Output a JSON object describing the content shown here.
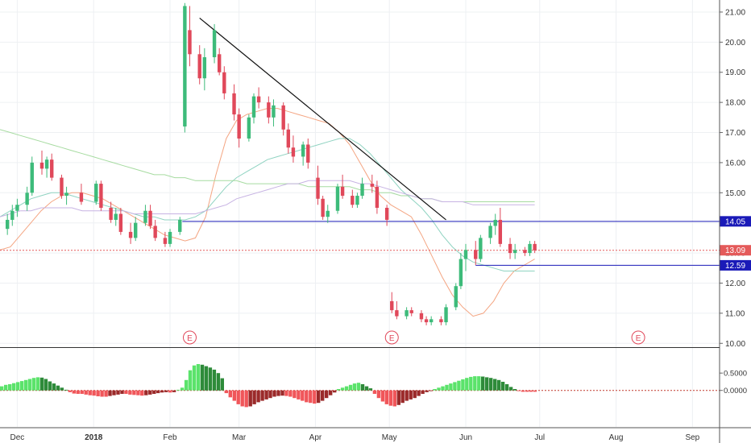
{
  "chart_data": {
    "type": "candlestick",
    "price_axis": {
      "ticks": [
        "21.00",
        "20.00",
        "19.00",
        "18.00",
        "17.00",
        "16.00",
        "15.00",
        "14.00",
        "13.00",
        "12.00",
        "11.00",
        "10.00"
      ],
      "range": [
        9.9,
        21.4
      ]
    },
    "oscillator_axis": {
      "ticks": [
        "0.5000",
        "0.0000"
      ],
      "range": [
        -1.05,
        1.2
      ]
    },
    "time_axis": [
      "Dec",
      "2018",
      "Feb",
      "Mar",
      "Apr",
      "May",
      "Jun",
      "Jul",
      "Aug",
      "Sep"
    ],
    "earnings_markers": [
      "E",
      "E",
      "E"
    ],
    "earnings_positions": [
      "2018-02-09",
      "2018-05-02",
      "2018-08-10"
    ],
    "horizontal_levels": [
      {
        "price": 14.05,
        "label": "14.05",
        "color": "#1a1ab8",
        "style": "solid"
      },
      {
        "price": 12.59,
        "label": "12.59",
        "color": "#1a1ab8",
        "style": "solid"
      },
      {
        "price": 13.09,
        "label": "13.09",
        "color": "#e45a5a",
        "style": "dotted"
      }
    ],
    "trendline": {
      "from": [
        "2018-02-13",
        20.8
      ],
      "to": [
        "2018-05-24",
        14.1
      ]
    },
    "moving_averages": [
      {
        "color": "#f4a582",
        "values": [
          13.1,
          13.2,
          13.6,
          14.0,
          14.4,
          14.7,
          14.9,
          15.0,
          15.0,
          14.9,
          14.8,
          14.6,
          14.4,
          14.2,
          14.0,
          13.8,
          13.6,
          13.5,
          13.4,
          13.5,
          14.2,
          15.6,
          16.8,
          17.4,
          17.6,
          17.7,
          17.8,
          17.8,
          17.7,
          17.6,
          17.5,
          17.4,
          17.3,
          17.0,
          16.6,
          16.0,
          15.4,
          14.9,
          14.6,
          14.4,
          14.2,
          13.6,
          12.9,
          12.2,
          11.6,
          11.2,
          10.9,
          11.0,
          11.4,
          12.0,
          12.4,
          12.6,
          12.8
        ]
      },
      {
        "color": "#8fd3c1",
        "values": [
          14.2,
          14.4,
          14.6,
          14.8,
          14.9,
          15.0,
          15.0,
          14.9,
          14.8,
          14.7,
          14.6,
          14.5,
          14.4,
          14.3,
          14.2,
          14.2,
          14.1,
          14.1,
          14.1,
          14.2,
          14.4,
          14.8,
          15.2,
          15.5,
          15.7,
          15.9,
          16.1,
          16.2,
          16.3,
          16.4,
          16.5,
          16.6,
          16.7,
          16.8,
          16.8,
          16.6,
          16.3,
          15.9,
          15.5,
          15.1,
          14.8,
          14.5,
          14.1,
          13.6,
          13.2,
          12.9,
          12.7,
          12.6,
          12.5,
          12.4,
          12.4,
          12.4,
          12.4
        ]
      },
      {
        "color": "#a6dba0",
        "values": [
          17.1,
          17.0,
          16.9,
          16.8,
          16.7,
          16.6,
          16.5,
          16.4,
          16.3,
          16.2,
          16.1,
          16.0,
          15.9,
          15.8,
          15.7,
          15.6,
          15.6,
          15.5,
          15.5,
          15.4,
          15.4,
          15.4,
          15.4,
          15.4,
          15.3,
          15.3,
          15.3,
          15.3,
          15.3,
          15.3,
          15.2,
          15.2,
          15.2,
          15.2,
          15.2,
          15.1,
          15.1,
          15.0,
          15.0,
          14.9,
          14.9,
          14.8,
          14.8,
          14.7,
          14.7,
          14.7,
          14.7,
          14.7,
          14.7,
          14.7,
          14.7,
          14.7,
          14.7
        ]
      },
      {
        "color": "#c7b3e3",
        "values": [
          14.2,
          14.3,
          14.4,
          14.4,
          14.5,
          14.5,
          14.5,
          14.5,
          14.4,
          14.4,
          14.4,
          14.4,
          14.4,
          14.3,
          14.3,
          14.3,
          14.3,
          14.3,
          14.3,
          14.3,
          14.4,
          14.5,
          14.6,
          14.8,
          14.9,
          15.0,
          15.1,
          15.2,
          15.3,
          15.3,
          15.4,
          15.4,
          15.4,
          15.4,
          15.4,
          15.3,
          15.3,
          15.2,
          15.1,
          15.0,
          14.9,
          14.8,
          14.8,
          14.7,
          14.7,
          14.7,
          14.6,
          14.6,
          14.6,
          14.6,
          14.6,
          14.6,
          14.6
        ]
      }
    ],
    "candles": [
      [
        "2017-11-27",
        13.8,
        14.3,
        13.6,
        14.1
      ],
      [
        "2017-11-29",
        14.1,
        14.6,
        13.9,
        14.4
      ],
      [
        "2017-12-01",
        14.4,
        14.8,
        14.2,
        14.6
      ],
      [
        "2017-12-05",
        14.6,
        15.2,
        14.4,
        15.0
      ],
      [
        "2017-12-07",
        15.0,
        16.2,
        14.9,
        16.0
      ],
      [
        "2017-12-11",
        16.0,
        16.4,
        15.6,
        15.8
      ],
      [
        "2017-12-13",
        15.8,
        16.2,
        15.5,
        16.1
      ],
      [
        "2017-12-15",
        16.1,
        16.3,
        15.4,
        15.5
      ],
      [
        "2017-12-19",
        15.5,
        15.6,
        14.8,
        14.9
      ],
      [
        "2017-12-21",
        14.9,
        15.2,
        14.6,
        15.0
      ],
      [
        "2017-12-27",
        15.0,
        15.3,
        14.6,
        14.7
      ],
      [
        "2018-01-02",
        14.7,
        15.4,
        14.6,
        15.3
      ],
      [
        "2018-01-04",
        15.3,
        15.4,
        14.4,
        14.5
      ],
      [
        "2018-01-08",
        14.5,
        14.7,
        14.0,
        14.1
      ],
      [
        "2018-01-10",
        14.1,
        14.5,
        13.9,
        14.3
      ],
      [
        "2018-01-12",
        14.3,
        14.5,
        13.6,
        13.7
      ],
      [
        "2018-01-16",
        13.7,
        14.0,
        13.3,
        13.5
      ],
      [
        "2018-01-18",
        13.5,
        14.2,
        13.4,
        14.0
      ],
      [
        "2018-01-22",
        14.0,
        14.6,
        13.9,
        14.4
      ],
      [
        "2018-01-24",
        14.4,
        14.6,
        13.8,
        13.9
      ],
      [
        "2018-01-26",
        13.9,
        14.1,
        13.4,
        13.5
      ],
      [
        "2018-01-30",
        13.5,
        13.7,
        13.2,
        13.3
      ],
      [
        "2018-02-01",
        13.3,
        13.8,
        13.2,
        13.7
      ],
      [
        "2018-02-05",
        13.7,
        14.2,
        13.6,
        14.1
      ],
      [
        "2018-02-07",
        17.2,
        21.3,
        17.0,
        21.2
      ],
      [
        "2018-02-09",
        20.4,
        21.2,
        19.2,
        19.6
      ],
      [
        "2018-02-13",
        19.6,
        19.9,
        18.6,
        18.8
      ],
      [
        "2018-02-15",
        18.8,
        19.8,
        18.4,
        19.5
      ],
      [
        "2018-02-19",
        19.5,
        20.6,
        19.3,
        20.4
      ],
      [
        "2018-02-21",
        19.6,
        19.8,
        18.9,
        19.0
      ],
      [
        "2018-02-23",
        19.0,
        19.2,
        18.1,
        18.3
      ],
      [
        "2018-02-27",
        18.3,
        18.6,
        17.4,
        17.6
      ],
      [
        "2018-03-01",
        17.6,
        17.8,
        16.5,
        16.8
      ],
      [
        "2018-03-05",
        16.8,
        17.6,
        16.7,
        17.5
      ],
      [
        "2018-03-07",
        17.5,
        18.3,
        17.3,
        18.2
      ],
      [
        "2018-03-09",
        18.2,
        18.5,
        17.8,
        18.0
      ],
      [
        "2018-03-13",
        18.0,
        18.2,
        17.3,
        17.5
      ],
      [
        "2018-03-15",
        17.5,
        18.1,
        17.2,
        17.9
      ],
      [
        "2018-03-19",
        17.9,
        18.0,
        16.9,
        17.1
      ],
      [
        "2018-03-21",
        17.1,
        17.3,
        16.3,
        16.5
      ],
      [
        "2018-03-23",
        16.5,
        16.9,
        16.0,
        16.2
      ],
      [
        "2018-03-27",
        16.2,
        16.7,
        15.9,
        16.6
      ],
      [
        "2018-03-29",
        16.6,
        16.8,
        15.8,
        16.0
      ],
      [
        "2018-04-02",
        15.5,
        15.9,
        14.6,
        14.8
      ],
      [
        "2018-04-04",
        14.8,
        14.9,
        14.1,
        14.2
      ],
      [
        "2018-04-06",
        14.2,
        14.6,
        14.0,
        14.4
      ],
      [
        "2018-04-10",
        14.4,
        15.3,
        14.3,
        15.2
      ],
      [
        "2018-04-12",
        15.2,
        15.6,
        14.8,
        14.9
      ],
      [
        "2018-04-16",
        14.9,
        15.1,
        14.5,
        14.6
      ],
      [
        "2018-04-18",
        14.6,
        15.0,
        14.5,
        14.9
      ],
      [
        "2018-04-20",
        14.9,
        15.5,
        14.8,
        15.3
      ],
      [
        "2018-04-24",
        15.3,
        15.6,
        15.0,
        15.2
      ],
      [
        "2018-04-26",
        15.2,
        15.4,
        14.3,
        14.5
      ],
      [
        "2018-04-30",
        14.5,
        14.6,
        13.9,
        14.1
      ],
      [
        "2018-05-02",
        11.4,
        11.7,
        11.0,
        11.1
      ],
      [
        "2018-05-04",
        11.1,
        11.4,
        10.8,
        10.9
      ],
      [
        "2018-05-08",
        10.9,
        11.2,
        10.8,
        11.1
      ],
      [
        "2018-05-10",
        11.1,
        11.2,
        10.9,
        11.0
      ],
      [
        "2018-05-14",
        11.0,
        11.1,
        10.7,
        10.8
      ],
      [
        "2018-05-16",
        10.8,
        10.9,
        10.6,
        10.7
      ],
      [
        "2018-05-18",
        10.7,
        10.9,
        10.6,
        10.8
      ],
      [
        "2018-05-22",
        10.8,
        10.9,
        10.6,
        10.7
      ],
      [
        "2018-05-24",
        10.7,
        11.3,
        10.6,
        11.2
      ],
      [
        "2018-05-28",
        11.2,
        12.0,
        11.1,
        11.9
      ],
      [
        "2018-05-30",
        11.9,
        13.0,
        11.8,
        12.8
      ],
      [
        "2018-06-01",
        12.8,
        13.3,
        12.4,
        13.1
      ],
      [
        "2018-06-05",
        13.1,
        13.4,
        12.6,
        12.8
      ],
      [
        "2018-06-07",
        12.8,
        13.6,
        12.7,
        13.5
      ],
      [
        "2018-06-11",
        13.5,
        14.0,
        13.3,
        13.9
      ],
      [
        "2018-06-13",
        13.9,
        14.3,
        13.6,
        14.1
      ],
      [
        "2018-06-15",
        14.1,
        14.5,
        13.2,
        13.3
      ],
      [
        "2018-06-19",
        13.3,
        13.5,
        12.8,
        13.0
      ],
      [
        "2018-06-21",
        13.0,
        13.3,
        12.8,
        13.1
      ],
      [
        "2018-06-25",
        13.1,
        13.2,
        12.9,
        13.0
      ],
      [
        "2018-06-27",
        13.0,
        13.4,
        12.9,
        13.3
      ],
      [
        "2018-06-29",
        13.3,
        13.4,
        13.0,
        13.09
      ]
    ],
    "oscillator_bars": [
      0.12,
      0.16,
      0.18,
      0.21,
      0.24,
      0.27,
      0.3,
      0.33,
      0.36,
      0.38,
      0.37,
      0.33,
      0.26,
      0.2,
      0.14,
      0.08,
      0.02,
      -0.05,
      -0.09,
      -0.1,
      -0.1,
      -0.12,
      -0.14,
      -0.15,
      -0.17,
      -0.18,
      -0.18,
      -0.16,
      -0.14,
      -0.12,
      -0.1,
      -0.1,
      -0.12,
      -0.13,
      -0.14,
      -0.15,
      -0.14,
      -0.12,
      -0.1,
      -0.08,
      -0.06,
      -0.05,
      -0.06,
      -0.05,
      0.02,
      0.08,
      0.3,
      0.58,
      0.72,
      0.76,
      0.74,
      0.7,
      0.66,
      0.6,
      0.5,
      0.35,
      -0.08,
      -0.2,
      -0.3,
      -0.4,
      -0.46,
      -0.48,
      -0.46,
      -0.4,
      -0.34,
      -0.3,
      -0.26,
      -0.22,
      -0.18,
      -0.16,
      -0.15,
      -0.16,
      -0.18,
      -0.22,
      -0.26,
      -0.3,
      -0.34,
      -0.36,
      -0.38,
      -0.36,
      -0.3,
      -0.22,
      -0.14,
      -0.06,
      0.04,
      0.08,
      0.12,
      0.16,
      0.2,
      0.22,
      0.18,
      0.12,
      0.06,
      -0.1,
      -0.22,
      -0.32,
      -0.4,
      -0.44,
      -0.46,
      -0.42,
      -0.36,
      -0.3,
      -0.26,
      -0.22,
      -0.16,
      -0.1,
      -0.05,
      -0.02,
      0.04,
      0.08,
      0.12,
      0.16,
      0.2,
      0.24,
      0.28,
      0.32,
      0.36,
      0.39,
      0.41,
      0.41,
      0.4,
      0.38,
      0.36,
      0.33,
      0.3,
      0.25,
      0.18,
      0.1,
      0.04,
      -0.02,
      -0.04,
      -0.04,
      -0.04,
      -0.04
    ]
  }
}
